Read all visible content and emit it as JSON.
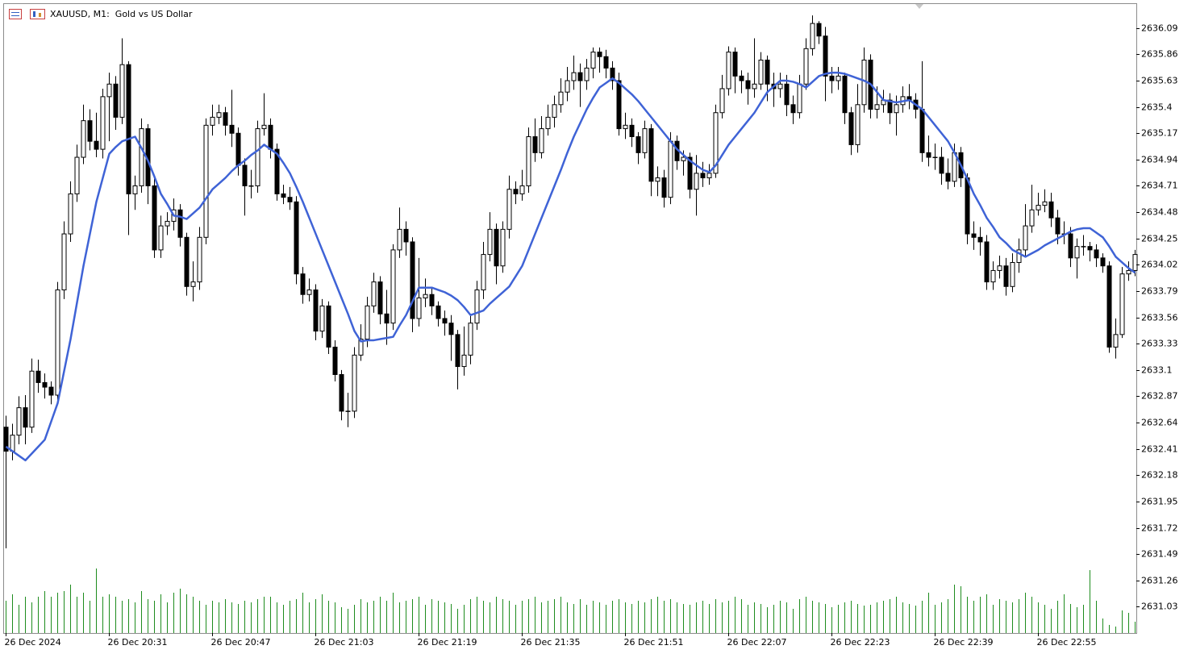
{
  "chart_data": {
    "type": "candlestick",
    "title": "XAUUSD, M1:  Gold vs US Dollar",
    "categories": [
      "26 Dec 2024",
      null,
      null,
      null,
      null,
      null,
      null,
      null,
      null,
      null,
      null,
      null,
      null,
      null,
      null,
      null,
      "26 Dec 20:31",
      null,
      null,
      null,
      null,
      null,
      null,
      null,
      null,
      null,
      null,
      null,
      null,
      null,
      null,
      null,
      "26 Dec 20:47",
      null,
      null,
      null,
      null,
      null,
      null,
      null,
      null,
      null,
      null,
      null,
      null,
      null,
      null,
      null,
      "26 Dec 21:03",
      null,
      null,
      null,
      null,
      null,
      null,
      null,
      null,
      null,
      null,
      null,
      null,
      null,
      null,
      null,
      "26 Dec 21:19",
      null,
      null,
      null,
      null,
      null,
      null,
      null,
      null,
      null,
      null,
      null,
      null,
      null,
      null,
      null,
      "26 Dec 21:35",
      null,
      null,
      null,
      null,
      null,
      null,
      null,
      null,
      null,
      null,
      null,
      null,
      null,
      null,
      null,
      "26 Dec 21:51",
      null,
      null,
      null,
      null,
      null,
      null,
      null,
      null,
      null,
      null,
      null,
      null,
      null,
      null,
      null,
      "26 Dec 22:07",
      null,
      null,
      null,
      null,
      null,
      null,
      null,
      null,
      null,
      null,
      null,
      null,
      null,
      null,
      null,
      "26 Dec 22:23",
      null,
      null,
      null,
      null,
      null,
      null,
      null,
      null,
      null,
      null,
      null,
      null,
      null,
      null,
      null,
      "26 Dec 22:39",
      null,
      null,
      null,
      null,
      null,
      null,
      null,
      null,
      null,
      null,
      null,
      null,
      null,
      null,
      null,
      "26 Dec 22:55",
      null,
      null,
      null,
      null,
      null,
      null,
      null,
      null,
      null,
      null,
      null,
      null,
      null,
      null,
      null
    ],
    "open": [
      2632.6,
      2632.39,
      2632.53,
      2632.77,
      2632.6,
      2633.09,
      2632.99,
      2632.95,
      2632.88,
      2633.8,
      2634.29,
      2634.64,
      2634.96,
      2635.28,
      2635.1,
      2635.03,
      2635.49,
      2635.6,
      2635.31,
      2635.77,
      2634.64,
      2634.71,
      2635.21,
      2634.71,
      2634.15,
      2634.36,
      2634.4,
      2634.5,
      2634.26,
      2633.83,
      2633.87,
      2634.26,
      2635.24,
      2635.31,
      2635.35,
      2635.24,
      2635.17,
      2634.89,
      2634.71,
      2634.71,
      2635.21,
      2635.24,
      2635.03,
      2634.64,
      2634.61,
      2634.57,
      2633.94,
      2633.76,
      2633.8,
      2633.44,
      2633.66,
      2633.3,
      2633.06,
      2632.74,
      2632.74,
      2633.23,
      2633.37,
      2633.66,
      2633.87,
      2633.59,
      2633.51,
      2634.15,
      2634.33,
      2634.22,
      2633.55,
      2633.73,
      2633.76,
      2633.66,
      2633.55,
      2633.51,
      2633.41,
      2633.13,
      2633.23,
      2633.51,
      2633.8,
      2634.11,
      2634.33,
      2634.01,
      2634.33,
      2634.68,
      2634.64,
      2634.71,
      2635.14,
      2635.0,
      2635.21,
      2635.31,
      2635.42,
      2635.53,
      2635.63,
      2635.7,
      2635.63,
      2635.74,
      2635.88,
      2635.84,
      2635.74,
      2635.63,
      2635.21,
      2635.24,
      2635.14,
      2635.0,
      2635.21,
      2634.75,
      2634.78,
      2634.61,
      2635.1,
      2634.93,
      2634.96,
      2634.68,
      2634.82,
      2634.78,
      2634.82,
      2635.35,
      2635.56,
      2635.88,
      2635.67,
      2635.63,
      2635.56,
      2635.6,
      2635.81,
      2635.6,
      2635.56,
      2635.6,
      2635.42,
      2635.35,
      2635.6,
      2635.91,
      2636.13,
      2636.02,
      2635.67,
      2635.63,
      2635.67,
      2635.35,
      2635.07,
      2635.42,
      2635.81,
      2635.38,
      2635.42,
      2635.46,
      2635.35,
      2635.42,
      2635.49,
      2635.46,
      2635.38,
      2635.0,
      2634.96,
      2634.96,
      2634.82,
      2634.75,
      2635.0,
      2634.78,
      2634.29,
      2634.26,
      2634.22,
      2633.87,
      2633.97,
      2634.01,
      2633.83,
      2634.04,
      2634.15,
      2634.36,
      2634.5,
      2634.54,
      2634.57,
      2634.43,
      2634.29,
      2634.29,
      2634.08,
      2634.18,
      2634.18,
      2634.15,
      2634.08,
      2634.01,
      2633.3,
      2633.41,
      2633.94,
      2633.97
    ],
    "high": [
      2632.7,
      2632.63,
      2632.87,
      2632.88,
      2633.2,
      2633.19,
      2633.07,
      2633.0,
      2633.87,
      2634.4,
      2634.75,
      2635.07,
      2635.42,
      2635.38,
      2635.35,
      2635.56,
      2635.7,
      2635.67,
      2636.0,
      2635.8,
      2634.8,
      2635.3,
      2635.25,
      2634.78,
      2634.45,
      2634.48,
      2634.6,
      2634.55,
      2634.3,
      2634.05,
      2634.35,
      2635.3,
      2635.42,
      2635.42,
      2635.4,
      2635.55,
      2635.22,
      2634.95,
      2634.85,
      2635.28,
      2635.52,
      2635.3,
      2635.08,
      2634.72,
      2634.7,
      2634.62,
      2634.0,
      2633.9,
      2633.85,
      2633.72,
      2633.7,
      2633.36,
      2633.1,
      2632.9,
      2633.3,
      2633.5,
      2633.74,
      2633.95,
      2633.92,
      2633.8,
      2634.2,
      2634.52,
      2634.4,
      2634.26,
      2634.08,
      2633.9,
      2633.82,
      2633.7,
      2633.62,
      2633.58,
      2633.45,
      2633.48,
      2633.58,
      2633.88,
      2634.22,
      2634.48,
      2634.38,
      2634.4,
      2634.8,
      2634.75,
      2634.85,
      2635.22,
      2635.3,
      2635.32,
      2635.42,
      2635.5,
      2635.65,
      2635.75,
      2635.85,
      2635.78,
      2635.82,
      2635.92,
      2635.92,
      2635.9,
      2635.8,
      2635.7,
      2635.35,
      2635.3,
      2635.18,
      2635.28,
      2635.25,
      2634.88,
      2634.85,
      2635.18,
      2635.15,
      2635.02,
      2635.0,
      2634.98,
      2634.92,
      2634.9,
      2635.42,
      2635.68,
      2635.93,
      2635.92,
      2635.72,
      2635.7,
      2636.0,
      2635.88,
      2635.85,
      2635.7,
      2635.7,
      2635.68,
      2635.5,
      2635.68,
      2636.0,
      2636.2,
      2636.15,
      2636.1,
      2635.75,
      2635.75,
      2635.7,
      2635.4,
      2635.6,
      2635.92,
      2635.86,
      2635.58,
      2635.55,
      2635.52,
      2635.5,
      2635.58,
      2635.6,
      2635.52,
      2635.8,
      2635.15,
      2635.08,
      2635.05,
      2634.95,
      2635.08,
      2635.05,
      2634.82,
      2634.4,
      2634.35,
      2634.28,
      2634.05,
      2634.1,
      2634.08,
      2634.12,
      2634.25,
      2634.55,
      2634.72,
      2634.65,
      2634.68,
      2634.65,
      2634.5,
      2634.4,
      2634.35,
      2634.25,
      2634.28,
      2634.22,
      2634.2,
      2634.12,
      2634.05,
      2633.55,
      2634.0,
      2634.05,
      2634.15
    ],
    "low": [
      2631.54,
      2632.31,
      2632.45,
      2632.45,
      2632.55,
      2632.9,
      2632.85,
      2632.8,
      2632.82,
      2633.72,
      2634.22,
      2634.57,
      2634.9,
      2635.02,
      2634.96,
      2634.95,
      2635.1,
      2635.2,
      2635.25,
      2634.28,
      2634.5,
      2634.65,
      2634.55,
      2634.08,
      2634.08,
      2634.28,
      2634.32,
      2634.18,
      2633.75,
      2633.7,
      2633.8,
      2634.2,
      2635.15,
      2635.25,
      2635.15,
      2635.05,
      2634.8,
      2634.45,
      2634.6,
      2634.65,
      2635.15,
      2634.95,
      2634.58,
      2634.55,
      2634.5,
      2633.85,
      2633.68,
      2633.7,
      2633.36,
      2633.38,
      2633.24,
      2633.0,
      2632.66,
      2632.6,
      2632.68,
      2633.18,
      2633.3,
      2633.6,
      2633.5,
      2633.32,
      2633.45,
      2634.08,
      2634.1,
      2633.43,
      2633.48,
      2633.65,
      2633.58,
      2633.48,
      2633.4,
      2633.18,
      2632.93,
      2633.05,
      2633.15,
      2633.45,
      2633.72,
      2634.05,
      2633.85,
      2633.95,
      2634.25,
      2634.55,
      2634.58,
      2634.65,
      2634.92,
      2634.95,
      2635.15,
      2635.22,
      2635.35,
      2635.45,
      2635.55,
      2635.4,
      2635.55,
      2635.65,
      2635.7,
      2635.65,
      2635.55,
      2635.15,
      2635.12,
      2635.05,
      2634.9,
      2634.95,
      2634.62,
      2634.62,
      2634.52,
      2634.55,
      2634.85,
      2634.8,
      2634.6,
      2634.45,
      2634.7,
      2634.72,
      2634.78,
      2635.3,
      2635.5,
      2635.52,
      2635.52,
      2635.42,
      2635.48,
      2635.55,
      2635.45,
      2635.4,
      2635.48,
      2635.32,
      2635.25,
      2635.3,
      2635.55,
      2635.85,
      2635.95,
      2635.45,
      2635.52,
      2635.55,
      2635.25,
      2634.98,
      2635.0,
      2635.35,
      2635.3,
      2635.3,
      2635.35,
      2635.25,
      2635.15,
      2635.35,
      2635.38,
      2635.3,
      2634.92,
      2634.88,
      2634.85,
      2634.72,
      2634.68,
      2634.7,
      2634.7,
      2634.2,
      2634.15,
      2634.1,
      2633.8,
      2633.8,
      2633.9,
      2633.75,
      2633.78,
      2633.95,
      2634.1,
      2634.3,
      2634.45,
      2634.48,
      2634.35,
      2634.2,
      2634.2,
      2634.0,
      2633.9,
      2634.1,
      2634.05,
      2634.0,
      2633.95,
      2633.25,
      2633.2,
      2633.38,
      2633.88,
      2633.92
    ],
    "close": [
      2632.39,
      2632.53,
      2632.77,
      2632.6,
      2633.09,
      2632.99,
      2632.95,
      2632.88,
      2633.8,
      2634.29,
      2634.64,
      2634.96,
      2635.28,
      2635.1,
      2635.03,
      2635.49,
      2635.6,
      2635.31,
      2635.77,
      2634.64,
      2634.71,
      2635.21,
      2634.71,
      2634.15,
      2634.36,
      2634.4,
      2634.5,
      2634.26,
      2633.83,
      2633.87,
      2634.26,
      2635.24,
      2635.31,
      2635.35,
      2635.24,
      2635.17,
      2634.89,
      2634.71,
      2634.71,
      2635.21,
      2635.24,
      2635.03,
      2634.64,
      2634.61,
      2634.57,
      2633.94,
      2633.76,
      2633.8,
      2633.44,
      2633.66,
      2633.3,
      2633.06,
      2632.74,
      2632.74,
      2633.23,
      2633.37,
      2633.66,
      2633.87,
      2633.59,
      2633.51,
      2634.15,
      2634.33,
      2634.22,
      2633.55,
      2633.73,
      2633.76,
      2633.66,
      2633.55,
      2633.51,
      2633.41,
      2633.13,
      2633.23,
      2633.51,
      2633.8,
      2634.11,
      2634.33,
      2634.01,
      2634.33,
      2634.68,
      2634.64,
      2634.71,
      2635.14,
      2635.0,
      2635.21,
      2635.31,
      2635.42,
      2635.53,
      2635.63,
      2635.7,
      2635.63,
      2635.74,
      2635.88,
      2635.84,
      2635.74,
      2635.63,
      2635.21,
      2635.24,
      2635.14,
      2635.0,
      2635.21,
      2634.75,
      2634.78,
      2634.61,
      2635.1,
      2634.93,
      2634.96,
      2634.68,
      2634.82,
      2634.78,
      2634.82,
      2635.35,
      2635.56,
      2635.88,
      2635.67,
      2635.63,
      2635.56,
      2635.6,
      2635.81,
      2635.6,
      2635.56,
      2635.6,
      2635.42,
      2635.35,
      2635.6,
      2635.91,
      2636.13,
      2636.02,
      2635.67,
      2635.63,
      2635.67,
      2635.35,
      2635.07,
      2635.42,
      2635.81,
      2635.38,
      2635.42,
      2635.46,
      2635.35,
      2635.42,
      2635.49,
      2635.46,
      2635.38,
      2635.0,
      2634.96,
      2634.96,
      2634.82,
      2634.75,
      2635.0,
      2634.78,
      2634.29,
      2634.26,
      2634.22,
      2633.87,
      2633.97,
      2634.01,
      2633.83,
      2634.04,
      2634.15,
      2634.36,
      2634.5,
      2634.54,
      2634.57,
      2634.43,
      2634.29,
      2634.29,
      2634.08,
      2634.18,
      2634.18,
      2634.15,
      2634.08,
      2634.01,
      2633.3,
      2633.41,
      2633.94,
      2633.97,
      2634.11
    ],
    "ma": [
      2632.43,
      2632.39,
      2632.35,
      2632.31,
      2632.37,
      2632.43,
      2632.49,
      2632.65,
      2632.81,
      2633.09,
      2633.37,
      2633.69,
      2634.01,
      2634.29,
      2634.57,
      2634.78,
      2634.99,
      2635.05,
      2635.1,
      2635.12,
      2635.14,
      2635.04,
      2634.93,
      2634.79,
      2634.64,
      2634.55,
      2634.45,
      2634.44,
      2634.42,
      2634.47,
      2634.52,
      2634.6,
      2634.68,
      2634.73,
      2634.78,
      2634.84,
      2634.89,
      2634.93,
      2634.98,
      2635.02,
      2635.07,
      2635.03,
      2634.99,
      2634.91,
      2634.82,
      2634.7,
      2634.57,
      2634.43,
      2634.29,
      2634.15,
      2634.01,
      2633.87,
      2633.73,
      2633.59,
      2633.44,
      2633.35,
      2633.36,
      2633.36,
      2633.37,
      2633.38,
      2633.39,
      2633.49,
      2633.58,
      2633.7,
      2633.82,
      2633.82,
      2633.82,
      2633.8,
      2633.78,
      2633.75,
      2633.71,
      2633.65,
      2633.58,
      2633.6,
      2633.62,
      2633.68,
      2633.73,
      2633.78,
      2633.83,
      2633.92,
      2634.01,
      2634.15,
      2634.29,
      2634.43,
      2634.57,
      2634.71,
      2634.85,
      2635.0,
      2635.14,
      2635.26,
      2635.38,
      2635.48,
      2635.57,
      2635.61,
      2635.65,
      2635.61,
      2635.56,
      2635.51,
      2635.45,
      2635.38,
      2635.31,
      2635.24,
      2635.17,
      2635.1,
      2635.03,
      2634.98,
      2634.93,
      2634.89,
      2634.85,
      2634.83,
      2634.89,
      2634.98,
      2635.07,
      2635.14,
      2635.21,
      2635.28,
      2635.35,
      2635.44,
      2635.53,
      2635.58,
      2635.63,
      2635.63,
      2635.62,
      2635.6,
      2635.57,
      2635.62,
      2635.67,
      2635.69,
      2635.7,
      2635.7,
      2635.69,
      2635.67,
      2635.65,
      2635.63,
      2635.6,
      2635.53,
      2635.46,
      2635.45,
      2635.44,
      2635.45,
      2635.46,
      2635.42,
      2635.38,
      2635.31,
      2635.24,
      2635.17,
      2635.1,
      2635.0,
      2634.89,
      2634.77,
      2634.64,
      2634.54,
      2634.43,
      2634.35,
      2634.26,
      2634.21,
      2634.15,
      2634.12,
      2634.09,
      2634.12,
      2634.15,
      2634.19,
      2634.22,
      2634.25,
      2634.28,
      2634.31,
      2634.33,
      2634.34,
      2634.34,
      2634.3,
      2634.26,
      2634.18,
      2634.09,
      2634.04,
      2633.99,
      2633.95
    ],
    "ma_color": "#3f63d6",
    "volume": [
      40,
      48,
      35,
      45,
      38,
      45,
      52,
      45,
      50,
      52,
      60,
      45,
      50,
      40,
      80,
      45,
      48,
      45,
      40,
      42,
      38,
      52,
      42,
      40,
      48,
      38,
      50,
      55,
      48,
      45,
      40,
      35,
      40,
      38,
      42,
      38,
      36,
      40,
      38,
      42,
      45,
      45,
      38,
      35,
      40,
      42,
      50,
      38,
      42,
      48,
      40,
      38,
      32,
      30,
      35,
      42,
      38,
      40,
      45,
      40,
      50,
      38,
      40,
      42,
      45,
      35,
      42,
      40,
      38,
      36,
      30,
      35,
      42,
      45,
      40,
      38,
      45,
      42,
      40,
      35,
      40,
      42,
      45,
      38,
      40,
      42,
      45,
      38,
      36,
      42,
      35,
      40,
      38,
      35,
      40,
      42,
      38,
      36,
      40,
      38,
      42,
      45,
      40,
      42,
      38,
      36,
      35,
      38,
      40,
      36,
      42,
      38,
      40,
      45,
      42,
      35,
      38,
      36,
      32,
      35,
      40,
      38,
      30,
      42,
      45,
      40,
      38,
      36,
      32,
      35,
      38,
      40,
      36,
      34,
      35,
      38,
      40,
      42,
      45,
      38,
      36,
      34,
      40,
      50,
      35,
      38,
      42,
      60,
      58,
      45,
      40,
      45,
      48,
      35,
      42,
      40,
      38,
      42,
      50,
      45,
      38,
      35,
      30,
      40,
      48,
      36,
      32,
      35,
      78,
      40,
      18,
      10,
      8,
      28,
      25,
      14
    ],
    "volume_color": "#1e8c1e",
    "bull_color": "#ffffff",
    "bear_color": "#000000",
    "ylim": [
      2630.8,
      2636.3
    ],
    "yticks": [
      2636.09,
      2635.86,
      2635.63,
      2635.4,
      2635.17,
      2634.94,
      2634.71,
      2634.48,
      2634.25,
      2634.02,
      2633.79,
      2633.56,
      2633.33,
      2633.1,
      2632.87,
      2632.64,
      2632.41,
      2632.18,
      2631.95,
      2631.72,
      2631.49,
      2631.26,
      2631.03
    ]
  }
}
